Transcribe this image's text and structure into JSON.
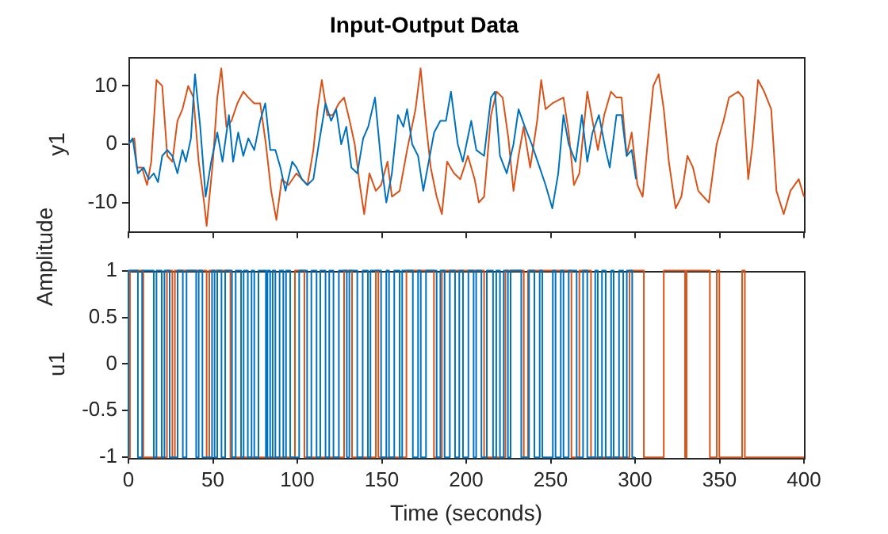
{
  "chart_data": [
    {
      "type": "line",
      "title": "Input-Output Data",
      "ylabel": "y1",
      "annotations": [
        "Amplitude"
      ],
      "xlim": [
        0,
        400
      ],
      "xticks": [
        0,
        50,
        100,
        150,
        200,
        250,
        300,
        350,
        400
      ],
      "ylim": [
        -15,
        15
      ],
      "yticks": [
        -10,
        0,
        10
      ],
      "tick_labels": "y",
      "grid": false,
      "series": [
        {
          "color": "#0072bd",
          "x": [
            0,
            2.5,
            5.6,
            9,
            12,
            15,
            17.5,
            20,
            23,
            26,
            29,
            32,
            34,
            37,
            39.4,
            42.5,
            45.7,
            49,
            52.6,
            55.7,
            59.5,
            62,
            65,
            68,
            71,
            74.5,
            78,
            81,
            84,
            87,
            90,
            93,
            97,
            99.5,
            102.7,
            106,
            109.5,
            112.7,
            116.7,
            120,
            123,
            126,
            129,
            132,
            135.5,
            139,
            142,
            146,
            149.6,
            152.7,
            156,
            159.6,
            162.8,
            165,
            168,
            171.5,
            174.6,
            177.8,
            181,
            184.7,
            188,
            191,
            195,
            198,
            203,
            206,
            210.6,
            214.7,
            217,
            220,
            224,
            228,
            231,
            234.7,
            238.8,
            243.5,
            247,
            251,
            254.5,
            257.6,
            260.7,
            264.8,
            268.5,
            271.7,
            274.8,
            278.6,
            282.6,
            285,
            289,
            292,
            295,
            298,
            300.5
          ],
          "values": [
            0,
            1,
            -5,
            -4,
            -6,
            -5,
            -6.5,
            -2,
            -1,
            -2,
            -5,
            -1,
            -3,
            1,
            12,
            3,
            -9,
            -3,
            2,
            -3,
            5,
            -3,
            2,
            -2,
            1,
            -1,
            4,
            7,
            -1,
            -1,
            -4,
            -8,
            -3,
            -4,
            -6,
            -7,
            -6,
            0,
            7,
            4,
            6,
            0,
            3,
            -4,
            -5,
            1,
            3,
            8,
            -3,
            -10,
            -5,
            5,
            3,
            6,
            0,
            -2,
            -8,
            -3,
            2,
            4,
            4,
            9,
            0,
            -3,
            4,
            -1,
            -2,
            8,
            9,
            -2,
            -5,
            0,
            6,
            3,
            0,
            -4,
            -7,
            -11,
            -5,
            5,
            0,
            -3,
            5,
            -3,
            2,
            5,
            -1,
            -4,
            5,
            5,
            -2,
            -1,
            -6
          ]
        },
        {
          "color": "#d95319",
          "x": [
            0,
            3.5,
            5,
            8,
            11,
            13.5,
            16.6,
            20,
            23,
            26,
            29,
            32,
            35.4,
            38.5,
            41.6,
            44.8,
            46.3,
            50,
            52.6,
            55,
            58,
            61,
            64.5,
            68,
            71,
            74.5,
            78,
            81.4,
            84.5,
            87.6,
            90.8,
            94.8,
            99.5,
            102.7,
            106,
            109.5,
            112,
            114.5,
            117.7,
            121,
            124.6,
            127.7,
            131,
            134,
            137,
            139.6,
            142.7,
            146.5,
            149.6,
            153.4,
            156,
            160.6,
            165,
            170,
            173,
            176,
            179,
            182.5,
            185.6,
            188.7,
            192.8,
            196.5,
            201,
            205,
            207.5,
            210.6,
            214.7,
            218,
            221.6,
            225,
            228,
            231,
            234,
            237.9,
            242,
            244.4,
            247,
            251,
            257.6,
            260.7,
            263.8,
            267,
            271.7,
            274.8,
            278,
            281.7,
            285.7,
            289,
            292,
            295,
            298,
            301.4,
            304.5,
            307.7,
            310.8,
            314,
            317,
            320,
            324,
            327.4,
            331,
            334.3,
            337.4,
            340.5,
            343.7,
            348.3,
            352.4,
            355.6,
            361,
            364,
            367,
            369.6,
            372.8,
            376.5,
            380.6,
            383.7,
            388,
            392,
            396.9,
            400
          ],
          "values": [
            0,
            1,
            -4,
            -4,
            -7,
            -3,
            11,
            10,
            -2,
            -3,
            4,
            6,
            10,
            8,
            -3,
            -10,
            -14,
            -3,
            8,
            13,
            3,
            4,
            7,
            9,
            8,
            7,
            7,
            0,
            -8,
            -13,
            -6,
            -7,
            -5,
            -6,
            -7,
            -1,
            6,
            11,
            5,
            5,
            7,
            8,
            4,
            0,
            -7,
            -12,
            -5,
            -8,
            -7,
            -3,
            -9,
            -8,
            -1,
            6,
            13,
            4,
            -4,
            -9,
            -12,
            -3,
            -5,
            -6,
            -2,
            -6,
            -10,
            -9,
            5,
            9,
            8,
            1,
            -8,
            -2,
            3,
            -4,
            4,
            11,
            6,
            7,
            8,
            2,
            -7,
            -5,
            9,
            4,
            -1,
            5,
            9,
            8,
            8,
            -2,
            2,
            -7,
            -9,
            1,
            10,
            12,
            6,
            -3,
            -11,
            -9,
            -2,
            -4,
            -8,
            -9,
            -10,
            0,
            4,
            8,
            9,
            8,
            -6,
            0,
            11,
            9,
            6,
            -8,
            -12,
            -8,
            -6,
            -9
          ]
        }
      ]
    },
    {
      "type": "step",
      "ylabel": "u1",
      "xlabel": "Time (seconds)",
      "xlim": [
        0,
        400
      ],
      "xticks": [
        0,
        50,
        100,
        150,
        200,
        250,
        300,
        350,
        400
      ],
      "ylim": [
        -1,
        1
      ],
      "yticks": [
        -1,
        -0.5,
        0,
        0.5,
        1
      ],
      "grid": false,
      "series": [
        {
          "color": "#0072bd",
          "x": [
            0,
            5.6,
            8.1,
            15,
            16.6,
            19.7,
            21.3,
            24.4,
            29.1,
            32.2,
            34.4,
            40.1,
            41.6,
            43.8,
            49.5,
            51,
            52.6,
            55.1,
            57.3,
            61.3,
            63.5,
            66.7,
            68.2,
            70.7,
            72.9,
            74.5,
            77,
            81.4,
            82.3,
            83.9,
            85.4,
            87,
            89.5,
            91.7,
            93.3,
            95.8,
            101.1,
            105.8,
            108.3,
            111.4,
            113.6,
            116.7,
            118.9,
            121.4,
            124.6,
            129.3,
            130.8,
            135.5,
            138.7,
            141.8,
            143.3,
            149.6,
            152.7,
            154.3,
            157.4,
            160.6,
            162.1,
            168.4,
            171.5,
            173.1,
            176.2,
            182.5,
            184.7,
            187.2,
            190.3,
            193.4,
            195.9,
            198.1,
            201.3,
            204.4,
            205.9,
            209,
            212.2,
            215.9,
            217.8,
            220,
            222.2,
            224.7,
            226.3,
            232.6,
            237.2,
            240.4,
            243.5,
            245.1,
            251.3,
            252.9,
            256,
            257.6,
            260.7,
            265.4,
            269.2,
            271.7,
            276.4,
            277.9,
            280.4,
            282.6,
            285.8,
            287.3,
            290.5,
            293,
            295.1,
            298.3,
            299.8,
            300
          ],
          "values": [
            -1,
            1,
            -1,
            1,
            -1,
            1,
            -1,
            1,
            -1,
            1,
            -1,
            1,
            -1,
            1,
            -1,
            1,
            -1,
            1,
            -1,
            1,
            -1,
            1,
            -1,
            1,
            -1,
            1,
            -1,
            1,
            -1,
            1,
            -1,
            1,
            -1,
            1,
            -1,
            1,
            -1,
            1,
            -1,
            1,
            -1,
            1,
            -1,
            1,
            -1,
            1,
            -1,
            1,
            -1,
            1,
            -1,
            1,
            -1,
            1,
            -1,
            1,
            -1,
            1,
            -1,
            1,
            -1,
            1,
            -1,
            1,
            -1,
            1,
            -1,
            1,
            -1,
            1,
            -1,
            1,
            -1,
            1,
            -1,
            1,
            -1,
            1,
            -1,
            1,
            -1,
            1,
            -1,
            1,
            -1,
            1,
            -1,
            1,
            -1,
            1,
            -1,
            1,
            -1,
            1,
            -1,
            1,
            -1,
            1,
            -1,
            1,
            -1,
            1,
            -1,
            -1
          ]
        },
        {
          "color": "#d95319",
          "x": [
            0,
            0.9,
            8.8,
            22.8,
            26,
            27.5,
            46.3,
            47.9,
            60.4,
            98.6,
            104.2,
            127.7,
            132.4,
            146.5,
            148,
            164.6,
            180.9,
            185.6,
            210.6,
            223.2,
            234.1,
            236.6,
            262.3,
            267,
            273.9,
            296.7,
            305.2,
            317,
            329.6,
            330.5,
            344.3,
            348.4,
            349.9,
            363.4,
            365,
            380.6,
            400
          ],
          "values": [
            1,
            -1,
            1,
            -1,
            1,
            -1,
            1,
            -1,
            1,
            -1,
            1,
            -1,
            1,
            -1,
            1,
            -1,
            1,
            -1,
            1,
            -1,
            1,
            -1,
            1,
            -1,
            1,
            -1,
            1,
            -1,
            1,
            -1,
            1,
            -1,
            1,
            -1,
            1,
            -1,
            -1
          ]
        }
      ]
    }
  ]
}
